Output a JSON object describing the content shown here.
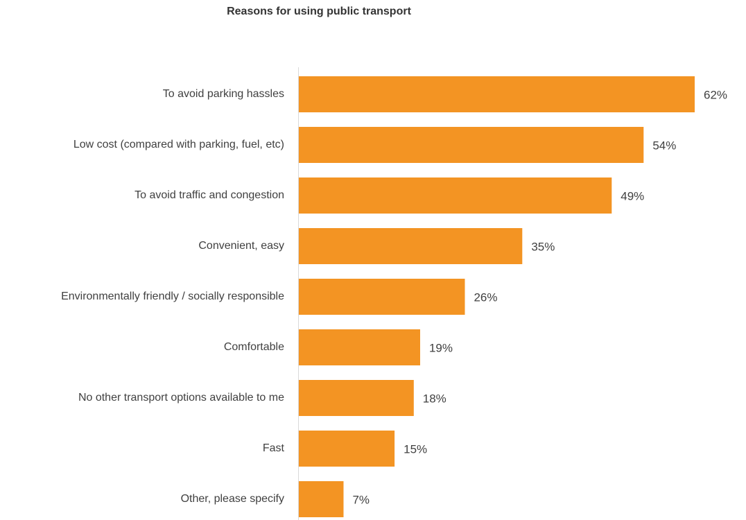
{
  "chart_data": {
    "type": "bar",
    "orientation": "horizontal",
    "title": "Reasons for using public transport",
    "xlabel": "",
    "ylabel": "",
    "categories": [
      "To avoid parking hassles",
      "Low cost (compared with parking, fuel, etc)",
      "To avoid traffic and congestion",
      "Convenient, easy",
      "Environmentally friendly / socially responsible",
      "Comfortable",
      "No other transport options available to me",
      "Fast",
      "Other, please specify"
    ],
    "values": [
      62,
      54,
      49,
      35,
      26,
      19,
      18,
      15,
      7
    ],
    "value_labels": [
      "62%",
      "54%",
      "49%",
      "35%",
      "26%",
      "19%",
      "18%",
      "15%",
      "7%"
    ],
    "unit": "%",
    "xlim": [
      0,
      62
    ],
    "grid": false,
    "legend": "none",
    "colors": {
      "bar": "#F39423",
      "axis": "#D9D9D9",
      "text": "#404040"
    }
  }
}
